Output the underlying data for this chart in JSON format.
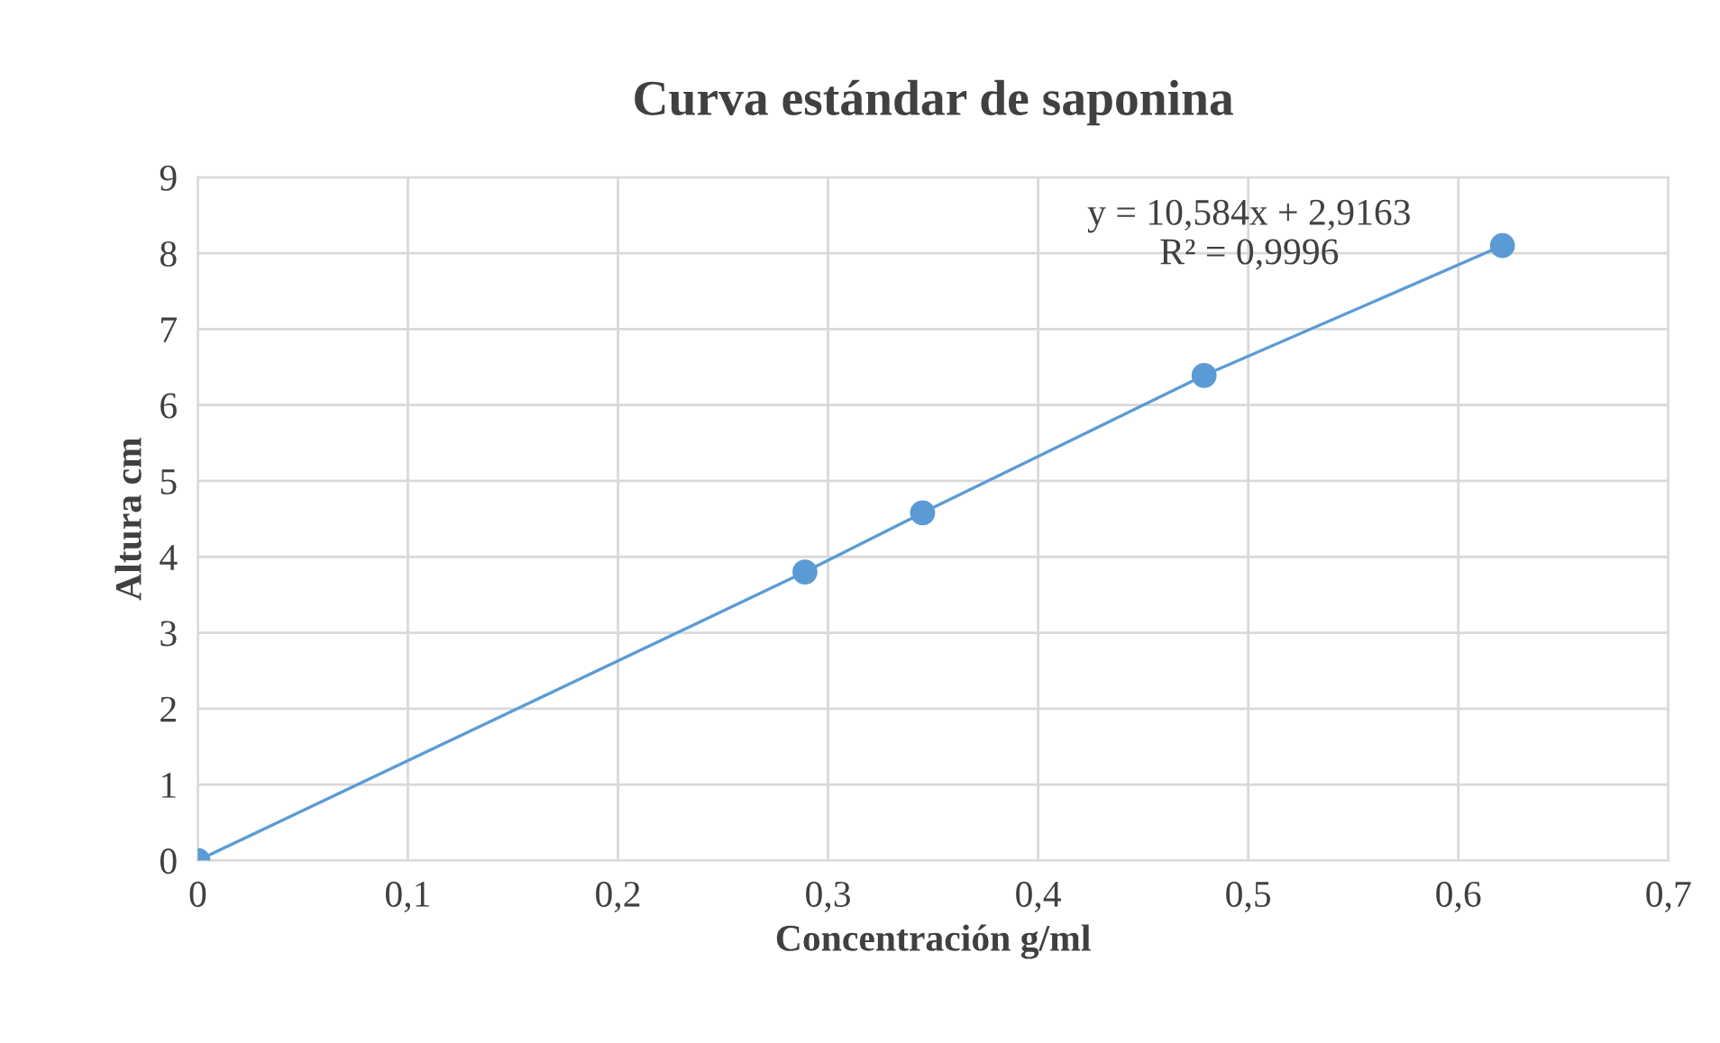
{
  "chart_data": {
    "type": "line",
    "title": "Curva estándar de saponina",
    "xlabel": "Concentración g/ml",
    "ylabel": "Altura cm",
    "x": [
      0,
      0.289,
      0.345,
      0.479,
      0.621
    ],
    "series": [
      {
        "color": "#5b9bd5",
        "values": [
          0,
          3.8,
          4.58,
          6.39,
          8.1
        ]
      }
    ],
    "xlim": [
      0,
      0.7
    ],
    "xticks": [
      {
        "value": 0,
        "label": "0"
      },
      {
        "value": 0.1,
        "label": "0,1"
      },
      {
        "value": 0.2,
        "label": "0,2"
      },
      {
        "value": 0.3,
        "label": "0,3"
      },
      {
        "value": 0.4,
        "label": "0,4"
      },
      {
        "value": 0.5,
        "label": "0,5"
      },
      {
        "value": 0.6,
        "label": "0,6"
      },
      {
        "value": 0.7,
        "label": "0,7"
      }
    ],
    "ylim": [
      0,
      9
    ],
    "yticks": [
      0,
      1,
      2,
      3,
      4,
      5,
      6,
      7,
      8,
      9
    ],
    "annotations": [
      "y = 10,584x + 2,9163\nR² = 0,9996"
    ],
    "grid": true,
    "marker": "circle",
    "line_style": "solid",
    "legend": false
  }
}
